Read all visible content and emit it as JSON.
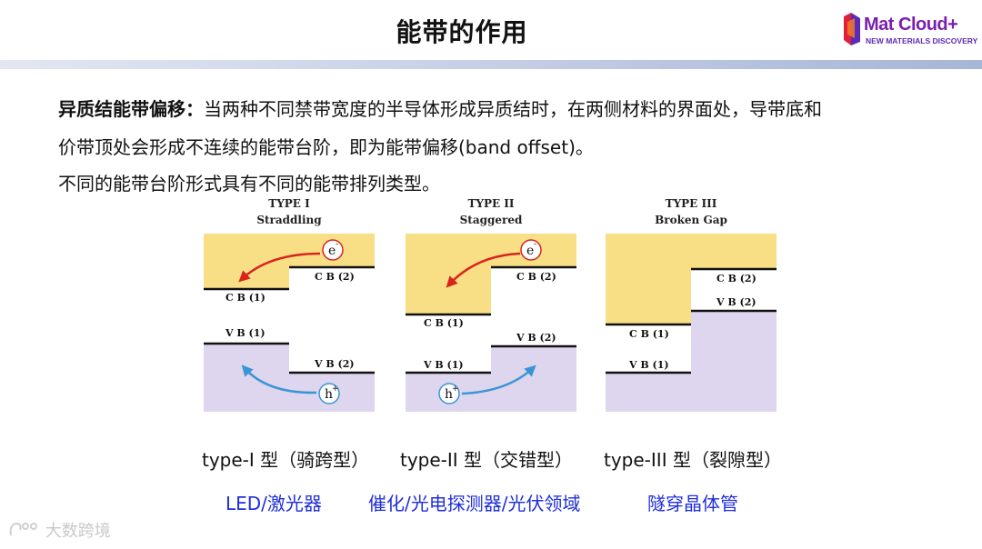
{
  "header": {
    "title": "能带的作用",
    "logo_text": "Mat Cloud+",
    "logo_sub": "NEW MATERIALS DISCOVERY"
  },
  "intro": {
    "term": "异质结能带偏移：",
    "line1": "当两种不同禁带宽度的半导体形成异质结时，在两侧材料的界面处，导带底和",
    "line2": "价带顶处会形成不连续的能带台阶，即为能带偏移(band offset)。",
    "line3": "不同的能带台阶形式具有不同的能带排列类型。"
  },
  "diagrams": [
    {
      "type": "TYPE I",
      "name": "Straddling",
      "cb1": "C B  (1)",
      "cb2": "C B  (2)",
      "vb1": "V B  (1)",
      "vb2": "V B  (2)",
      "electron": "e",
      "hole": "h"
    },
    {
      "type": "TYPE II",
      "name": "Staggered",
      "cb1": "C B  (1)",
      "cb2": "C B  (2)",
      "vb1": "V B  (1)",
      "vb2": "V B  (2)",
      "electron": "e",
      "hole": "h"
    },
    {
      "type": "TYPE III",
      "name": "Broken Gap",
      "cb1": "C B  (1)",
      "cb2": "C B  (2)",
      "vb1": "V B  (1)",
      "vb2": "V B  (2)"
    }
  ],
  "captions": [
    "type-I 型（骑跨型）",
    "type-II 型（交错型）",
    "type-III 型（裂隙型）"
  ],
  "applications": [
    "LED/激光器",
    "催化/光电探测器/光伏领域",
    "隧穿晶体管"
  ],
  "watermark": "大数跨境",
  "colors": {
    "conduction": "#f8df85",
    "valence": "#ddd6ee",
    "electron_arrow": "#d9241c",
    "hole_arrow": "#3a95d6",
    "app_text": "#1f2ed8"
  },
  "icons": [
    "matcloud-logo-icon",
    "electron-icon",
    "hole-icon",
    "watermark-logo-icon"
  ]
}
